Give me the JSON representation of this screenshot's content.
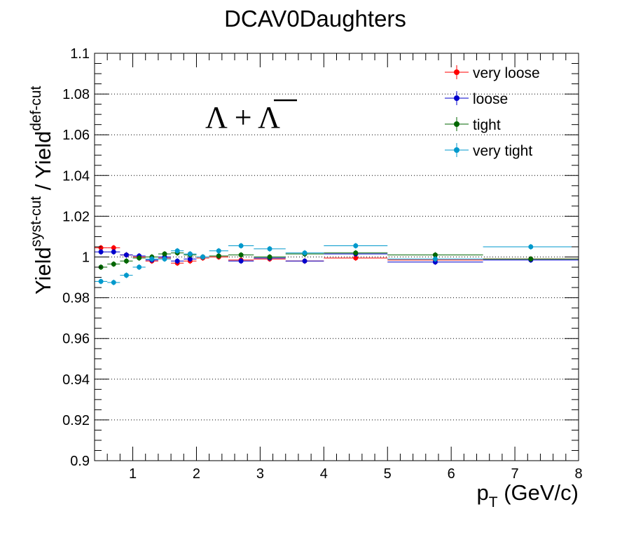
{
  "chart_data": {
    "type": "scatter",
    "title": "DCAV0Daughters",
    "xlabel": {
      "main": "p",
      "sub": "T",
      "rest": " (GeV/c)"
    },
    "ylabel": {
      "p1": "Yield",
      "sup1": "syst-cut",
      "p2": " / Yield",
      "sup2": "def-cut"
    },
    "xlim": [
      0.4,
      8
    ],
    "ylim": [
      0.9,
      1.1
    ],
    "xticks": [
      "1",
      "2",
      "3",
      "4",
      "5",
      "6",
      "7",
      "8"
    ],
    "yticks": [
      "0.9",
      "0.92",
      "0.94",
      "0.96",
      "0.98",
      "1",
      "1.02",
      "1.04",
      "1.06",
      "1.08",
      "1.1"
    ],
    "grid": "horizontal-dotted",
    "legend_position": "top-right",
    "annotation": {
      "left": "Λ + ",
      "right": "Λ"
    },
    "bins": [
      0.4,
      0.6,
      0.8,
      1.0,
      1.2,
      1.4,
      1.6,
      1.8,
      2.0,
      2.2,
      2.5,
      2.9,
      3.4,
      4.0,
      5.0,
      6.5,
      8.0
    ],
    "series": [
      {
        "name": "very loose",
        "color": "#ff0000",
        "values": [
          1.0045,
          1.0045,
          1.001,
          1.0,
          0.998,
          0.9995,
          0.997,
          0.998,
          0.9995,
          1.0,
          0.9985,
          0.999,
          0.998,
          0.9995,
          0.9985,
          0.999
        ]
      },
      {
        "name": "loose",
        "color": "#0000cc",
        "values": [
          1.0025,
          1.0025,
          1.001,
          1.0005,
          0.9985,
          1.0,
          0.998,
          0.999,
          1.0,
          1.0005,
          0.998,
          0.9995,
          0.998,
          1.0015,
          0.9975,
          0.9985
        ]
      },
      {
        "name": "tight",
        "color": "#006600",
        "values": [
          0.995,
          0.9965,
          0.998,
          0.9995,
          1.0,
          1.0015,
          1.002,
          1.001,
          1.0,
          1.0005,
          1.001,
          1.0,
          1.0015,
          1.002,
          1.001,
          0.999
        ]
      },
      {
        "name": "very tight",
        "color": "#0099cc",
        "values": [
          0.988,
          0.9875,
          0.991,
          0.995,
          0.999,
          0.999,
          1.003,
          1.0015,
          1.0,
          1.003,
          1.0055,
          1.004,
          1.002,
          1.0055,
          0.999,
          1.005
        ]
      }
    ]
  }
}
